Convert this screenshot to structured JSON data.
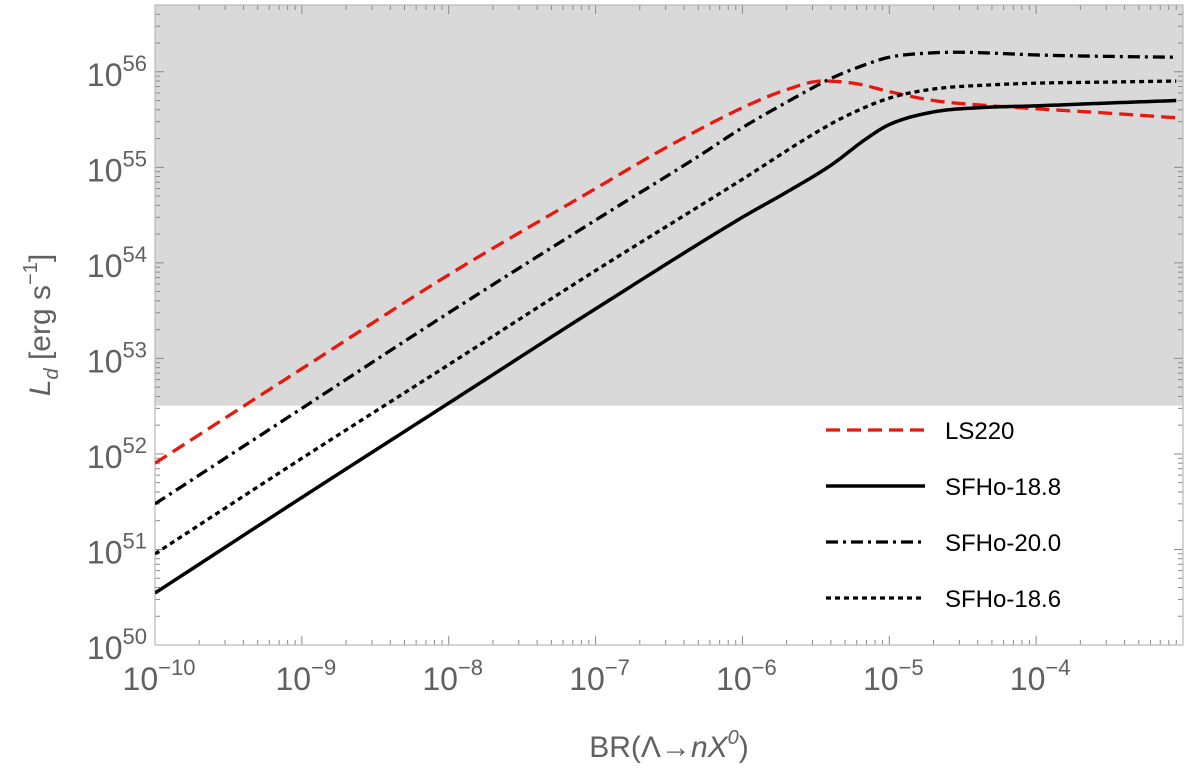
{
  "chart_data": {
    "type": "line",
    "xlabel": {
      "base": "BR(Λ→",
      "italic": "nX",
      "sup": "0",
      "close": ")"
    },
    "ylabel": {
      "italic": "L",
      "sub": "d",
      "mid": " [erg s",
      "sup": "−1",
      "close": "]"
    },
    "x_scale": "log",
    "y_scale": "log",
    "xlim": [
      1e-10,
      0.001
    ],
    "ylim": [
      1e+50,
      5e+56
    ],
    "grid": false,
    "x_ticks": [
      {
        "value": 1e-10,
        "base": "10",
        "exp": "−10"
      },
      {
        "value": 1e-09,
        "base": "10",
        "exp": "−9"
      },
      {
        "value": 1e-08,
        "base": "10",
        "exp": "−8"
      },
      {
        "value": 1e-07,
        "base": "10",
        "exp": "−7"
      },
      {
        "value": 1e-06,
        "base": "10",
        "exp": "−6"
      },
      {
        "value": 1e-05,
        "base": "10",
        "exp": "−5"
      },
      {
        "value": 0.0001,
        "base": "10",
        "exp": "−4"
      }
    ],
    "y_ticks": [
      {
        "value": 1e+50,
        "base": "10",
        "exp": "50"
      },
      {
        "value": 1e+51,
        "base": "10",
        "exp": "51"
      },
      {
        "value": 1e+52,
        "base": "10",
        "exp": "52"
      },
      {
        "value": 1e+53,
        "base": "10",
        "exp": "53"
      },
      {
        "value": 1e+54,
        "base": "10",
        "exp": "54"
      },
      {
        "value": 1e+55,
        "base": "10",
        "exp": "55"
      },
      {
        "value": 1e+56,
        "base": "10",
        "exp": "56"
      }
    ],
    "shaded_region": {
      "y_min": 3.2e+52,
      "y_max": 5e+56,
      "color": "#d9d9d9"
    },
    "legend_position": "lower-right",
    "series": [
      {
        "name": "LS220",
        "color": "#e8180f",
        "dash": "dashed",
        "points": [
          [
            1e-10,
            8e+51
          ],
          [
            1e-09,
            7.8e+52
          ],
          [
            1e-08,
            7.5e+53
          ],
          [
            1e-07,
            6e+54
          ],
          [
            3e-07,
            1.6e+55
          ],
          [
            1e-06,
            4.2e+55
          ],
          [
            2e-06,
            6.5e+55
          ],
          [
            3.5e-06,
            8e+55
          ],
          [
            6e-06,
            7.5e+55
          ],
          [
            1e-05,
            6.2e+55
          ],
          [
            2e-05,
            5e+55
          ],
          [
            5e-05,
            4.4e+55
          ],
          [
            0.0001,
            4.1e+55
          ],
          [
            0.0003,
            3.7e+55
          ],
          [
            0.0009,
            3.3e+55
          ]
        ]
      },
      {
        "name": "SFHo-18.8",
        "color": "#000000",
        "dash": "solid",
        "points": [
          [
            1e-10,
            3.5e+50
          ],
          [
            1e-09,
            3.5e+51
          ],
          [
            1e-08,
            3.4e+52
          ],
          [
            1e-07,
            3.3e+53
          ],
          [
            1e-06,
            3e+54
          ],
          [
            2e-06,
            5.5e+54
          ],
          [
            4e-06,
            1.05e+55
          ],
          [
            7e-06,
            2e+55
          ],
          [
            1e-05,
            2.8e+55
          ],
          [
            2e-05,
            3.8e+55
          ],
          [
            4e-05,
            4.2e+55
          ],
          [
            0.0001,
            4.4e+55
          ],
          [
            0.0003,
            4.7e+55
          ],
          [
            0.0009,
            5e+55
          ]
        ]
      },
      {
        "name": "SFHo-20.0",
        "color": "#000000",
        "dash": "dashdot",
        "points": [
          [
            1e-10,
            3e+51
          ],
          [
            1e-09,
            3e+52
          ],
          [
            1e-08,
            3e+53
          ],
          [
            1e-07,
            2.8e+54
          ],
          [
            5e-07,
            1.3e+55
          ],
          [
            1e-06,
            2.6e+55
          ],
          [
            2e-06,
            4.8e+55
          ],
          [
            4e-06,
            8.5e+55
          ],
          [
            7e-06,
            1.2e+56
          ],
          [
            1e-05,
            1.42e+56
          ],
          [
            2e-05,
            1.58e+56
          ],
          [
            3e-05,
            1.6e+56
          ],
          [
            6e-05,
            1.55e+56
          ],
          [
            0.0001,
            1.5e+56
          ],
          [
            0.0003,
            1.45e+56
          ],
          [
            0.0009,
            1.42e+56
          ]
        ]
      },
      {
        "name": "SFHo-18.6",
        "color": "#000000",
        "dash": "dotted",
        "points": [
          [
            1e-10,
            9e+50
          ],
          [
            1e-09,
            9e+51
          ],
          [
            1e-08,
            8.6e+52
          ],
          [
            1e-07,
            8.3e+53
          ],
          [
            1e-06,
            7.5e+54
          ],
          [
            3e-06,
            2.2e+55
          ],
          [
            5e-06,
            3.4e+55
          ],
          [
            1e-05,
            5.3e+55
          ],
          [
            2e-05,
            6.6e+55
          ],
          [
            5e-05,
            7.3e+55
          ],
          [
            0.0001,
            7.6e+55
          ],
          [
            0.0003,
            7.8e+55
          ],
          [
            0.0009,
            8e+55
          ]
        ]
      }
    ]
  }
}
